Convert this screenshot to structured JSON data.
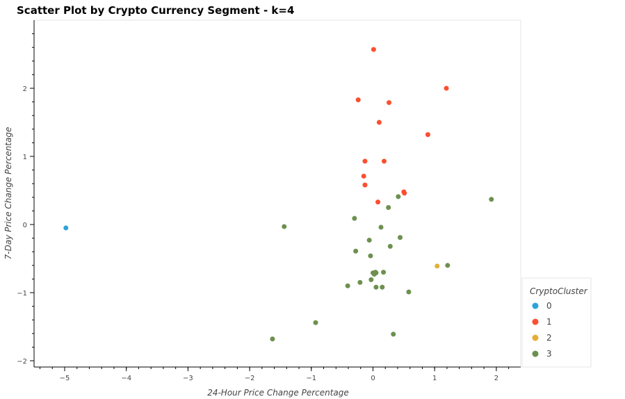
{
  "chart_data": {
    "type": "scatter",
    "title": "Scatter Plot by Crypto Currency Segment - k=4",
    "xlabel": "24-Hour Price Change Percentage",
    "ylabel": "7-Day Price Change Percentage",
    "xlim": [
      -5.5,
      2.4
    ],
    "ylim": [
      -2.1,
      3.0
    ],
    "x_ticks": [
      -5,
      -4,
      -3,
      -2,
      -1,
      0,
      1,
      2
    ],
    "y_ticks": [
      -2,
      -1,
      0,
      1,
      2
    ],
    "grid": false,
    "legend": {
      "title": "CryptoCluster",
      "placement": "bottom-right-outside"
    },
    "series": [
      {
        "name": "0",
        "color": "#30a2da",
        "points": [
          [
            -4.98,
            -0.05
          ]
        ]
      },
      {
        "name": "1",
        "color": "#fc4f30",
        "points": [
          [
            0.01,
            2.57
          ],
          [
            1.19,
            2.0
          ],
          [
            -0.24,
            1.83
          ],
          [
            0.26,
            1.79
          ],
          [
            0.1,
            1.5
          ],
          [
            0.89,
            1.32
          ],
          [
            -0.13,
            0.93
          ],
          [
            0.18,
            0.93
          ],
          [
            -0.15,
            0.71
          ],
          [
            -0.13,
            0.58
          ],
          [
            0.5,
            0.48
          ],
          [
            0.51,
            0.46
          ],
          [
            0.08,
            0.33
          ]
        ]
      },
      {
        "name": "2",
        "color": "#e5ae38",
        "points": [
          [
            1.04,
            -0.61
          ]
        ]
      },
      {
        "name": "3",
        "color": "#6d904f",
        "points": [
          [
            1.92,
            0.37
          ],
          [
            0.41,
            0.41
          ],
          [
            0.25,
            0.25
          ],
          [
            -0.3,
            0.09
          ],
          [
            -1.44,
            -0.03
          ],
          [
            0.13,
            -0.04
          ],
          [
            0.44,
            -0.19
          ],
          [
            -0.06,
            -0.23
          ],
          [
            0.28,
            -0.32
          ],
          [
            -0.28,
            -0.39
          ],
          [
            -0.04,
            -0.46
          ],
          [
            1.21,
            -0.6
          ],
          [
            0.04,
            -0.7
          ],
          [
            0.17,
            -0.7
          ],
          [
            0.0,
            -0.71
          ],
          [
            0.05,
            -0.71
          ],
          [
            0.02,
            -0.73
          ],
          [
            -0.03,
            -0.81
          ],
          [
            -0.21,
            -0.85
          ],
          [
            -0.41,
            -0.9
          ],
          [
            0.05,
            -0.92
          ],
          [
            0.15,
            -0.92
          ],
          [
            0.58,
            -0.99
          ],
          [
            -0.93,
            -1.44
          ],
          [
            -1.63,
            -1.68
          ],
          [
            0.33,
            -1.61
          ]
        ]
      }
    ]
  }
}
